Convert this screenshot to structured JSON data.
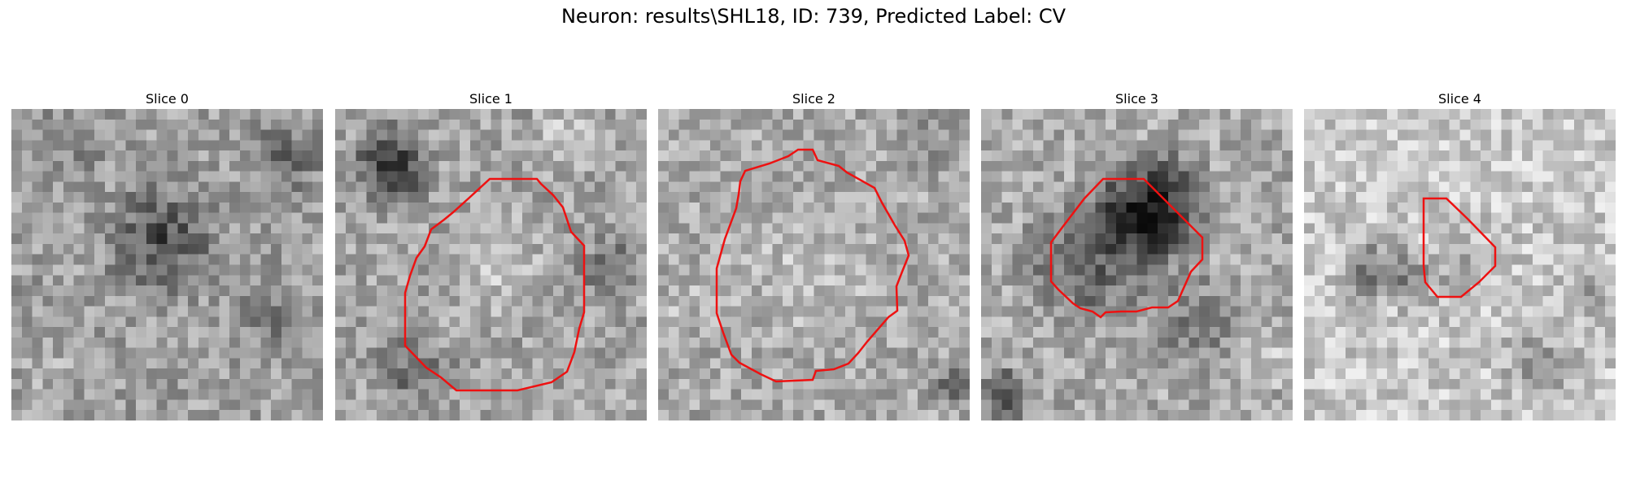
{
  "figure": {
    "title": "Neuron: results\\SHL18, ID: 739, Predicted Label: CV",
    "contour_color": "#ee1111"
  },
  "slices": [
    {
      "label": "Slice 0",
      "has_contour": false
    },
    {
      "label": "Slice 1",
      "has_contour": true
    },
    {
      "label": "Slice 2",
      "has_contour": true
    },
    {
      "label": "Slice 3",
      "has_contour": true
    },
    {
      "label": "Slice 4",
      "has_contour": true
    }
  ]
}
